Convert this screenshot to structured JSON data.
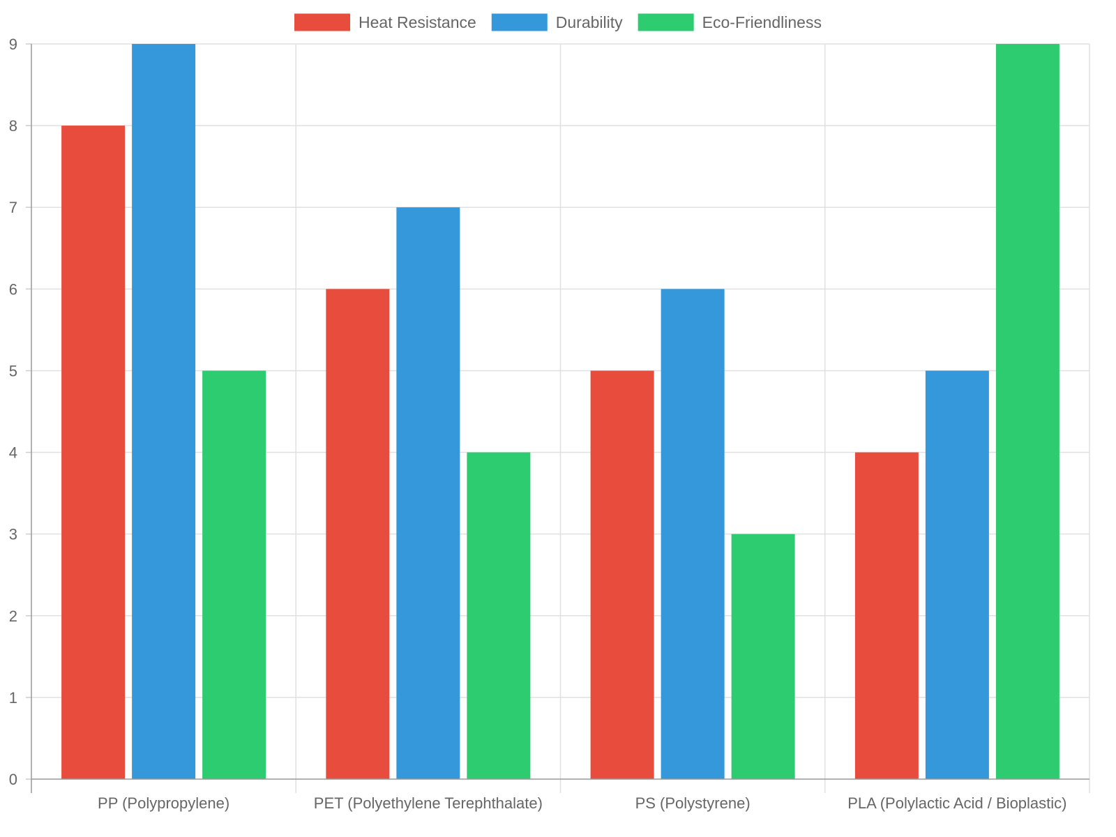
{
  "chart_data": {
    "type": "bar",
    "categories": [
      "PP (Polypropylene)",
      "PET (Polyethylene Terephthalate)",
      "PS (Polystyrene)",
      "PLA (Polylactic Acid / Bioplastic)"
    ],
    "series": [
      {
        "name": "Heat Resistance",
        "color": "#e74c3c",
        "values": [
          8,
          6,
          5,
          4
        ]
      },
      {
        "name": "Durability",
        "color": "#3498db",
        "values": [
          9,
          7,
          6,
          5
        ]
      },
      {
        "name": "Eco-Friendliness",
        "color": "#2ecc71",
        "values": [
          5,
          4,
          3,
          9
        ]
      }
    ],
    "ylim": [
      0,
      9
    ],
    "yticks": [
      0,
      1,
      2,
      3,
      4,
      5,
      6,
      7,
      8,
      9
    ],
    "grid": true,
    "legend_position": "top-center",
    "title": "",
    "xlabel": "",
    "ylabel": ""
  }
}
